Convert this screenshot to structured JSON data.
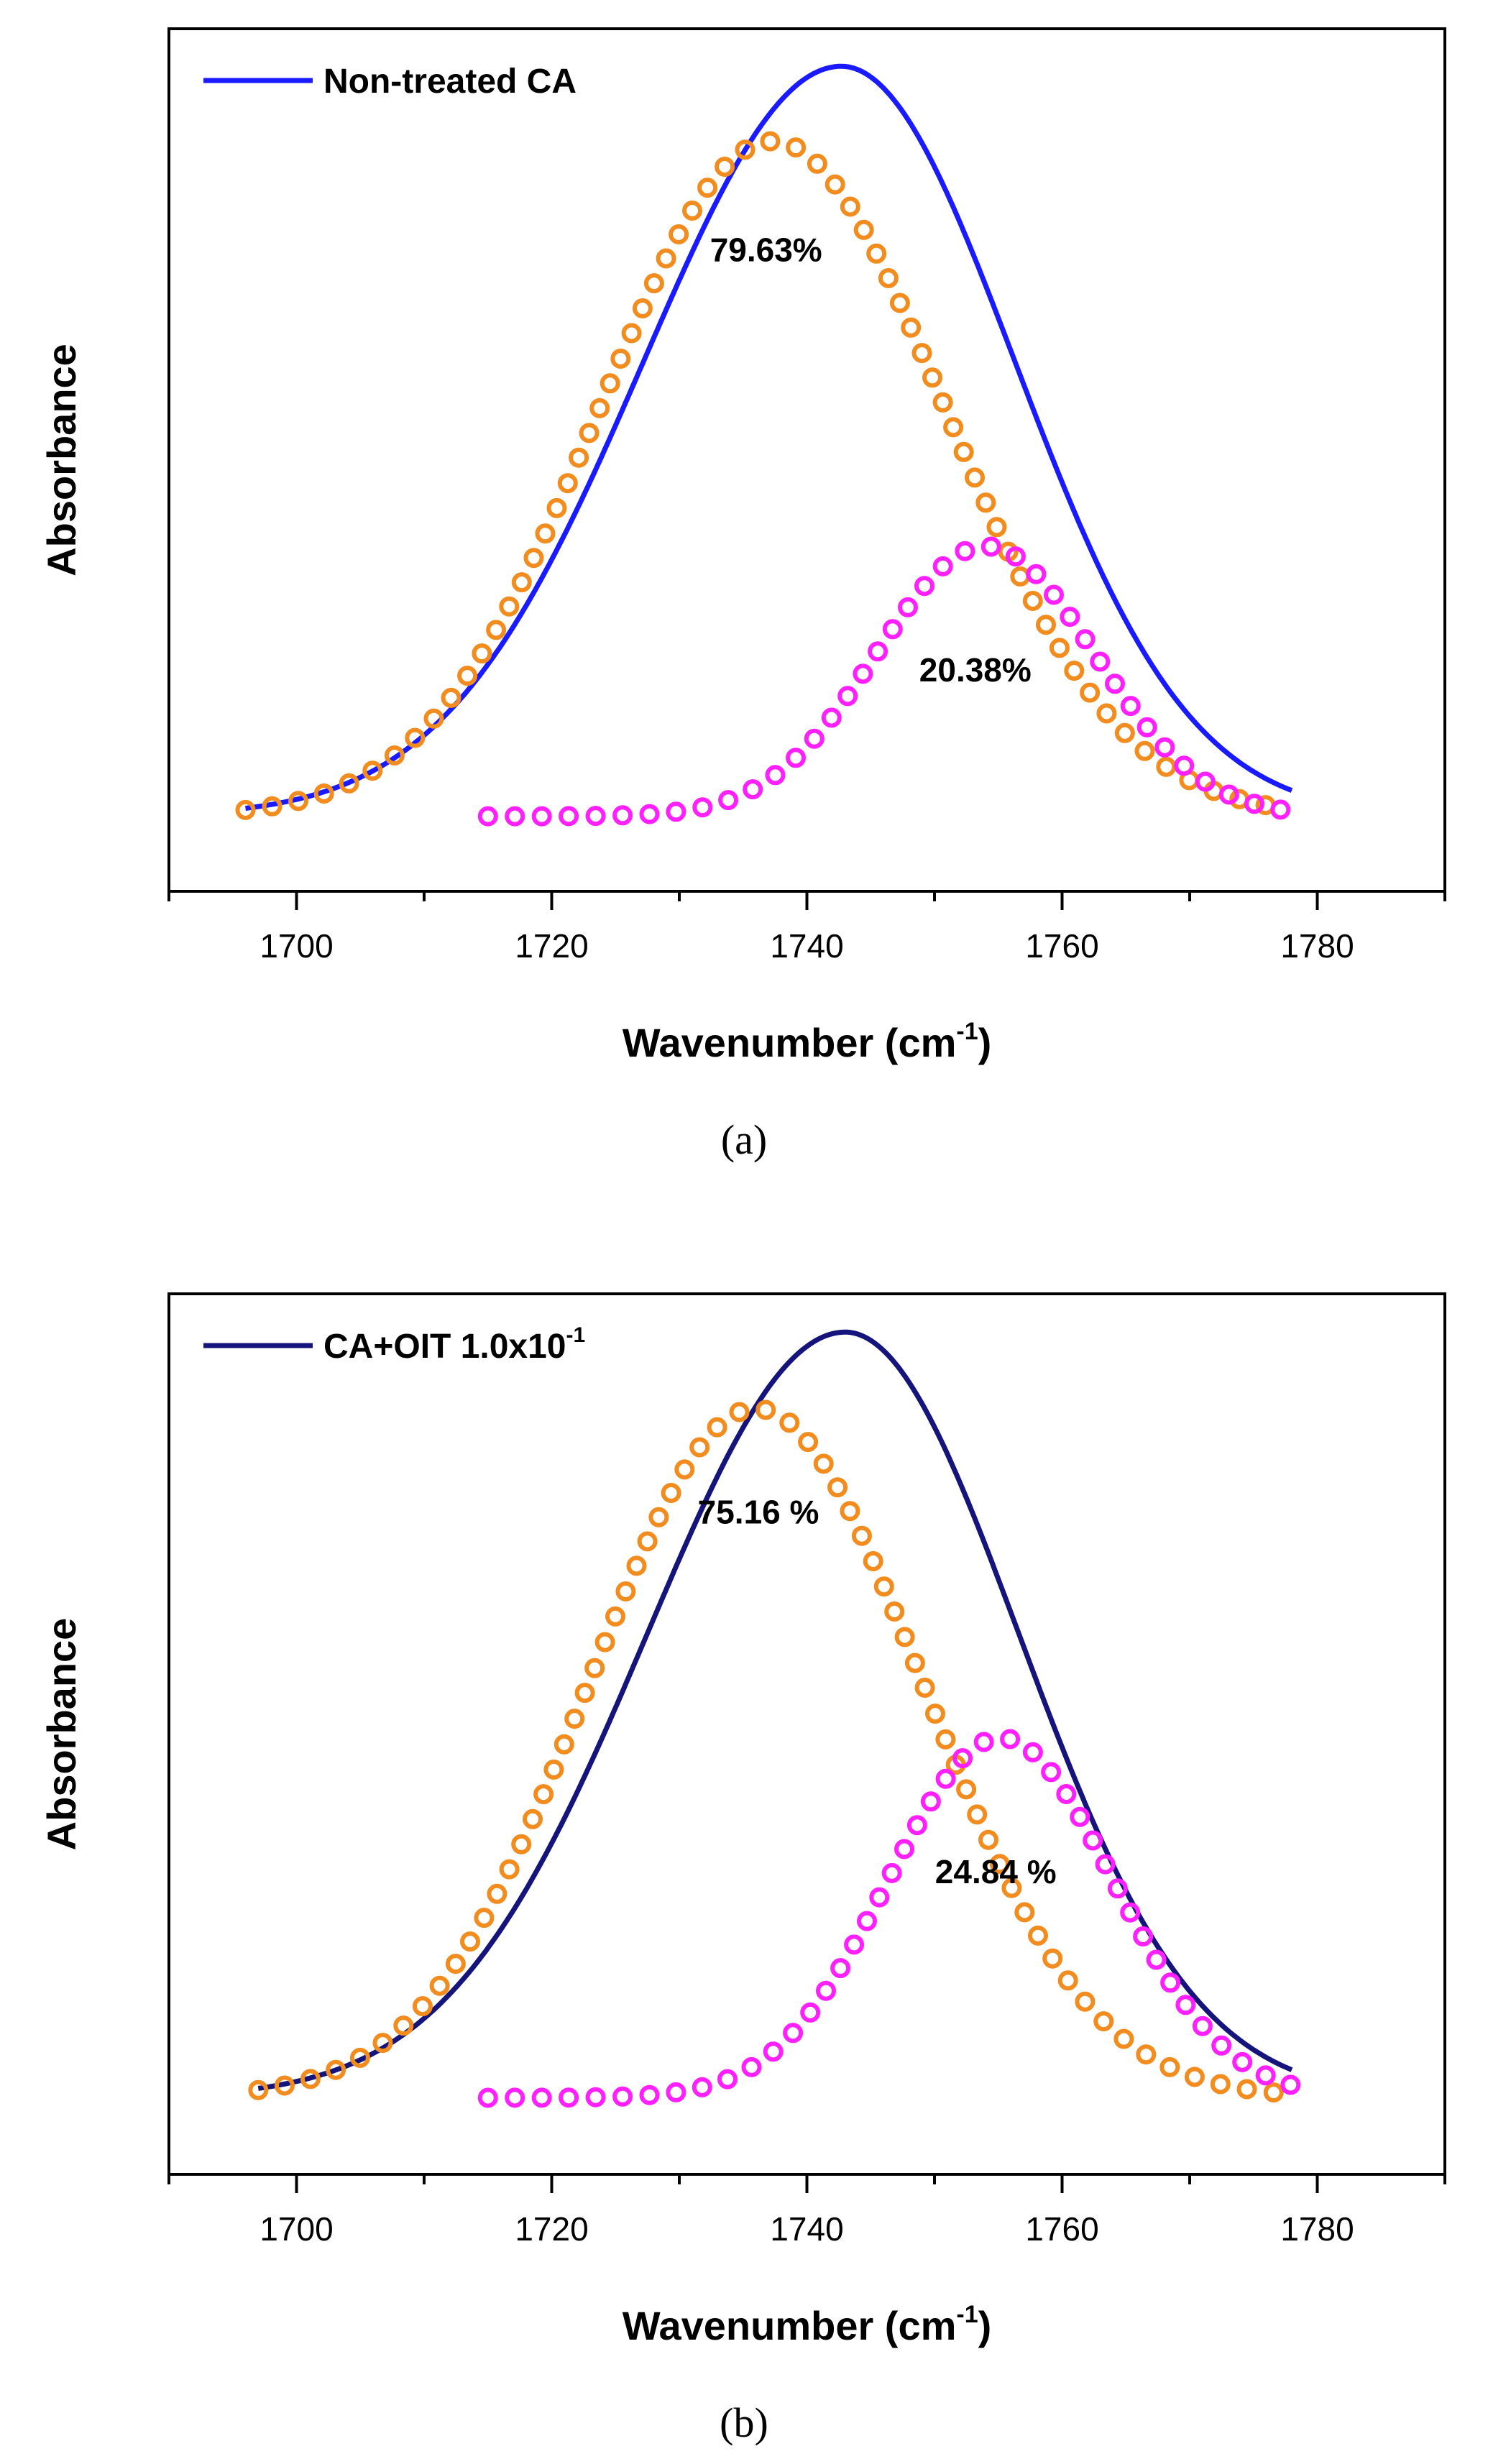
{
  "chart_data": [
    {
      "type": "line",
      "panel_label": "(a)",
      "xlabel": "Wavenumber (cm",
      "xlabel_sup": "-1",
      "xlabel_end": ")",
      "ylabel": "Absorbance",
      "xlim": [
        1690,
        1790
      ],
      "ylim": [
        -0.1,
        1.05
      ],
      "xticks": [
        1700,
        1720,
        1740,
        1760,
        1780
      ],
      "legend": {
        "label": "Non-treated CA",
        "position": "top-left"
      },
      "series": [
        {
          "name": "Non-treated CA",
          "kind": "line",
          "color": "#1a1aff",
          "peak_x": 1742.7,
          "amplitude": 1.0,
          "sigma_left": 15.5,
          "sigma_right": 13.6,
          "x_range": [
            1696,
            1778
          ]
        },
        {
          "name": "component 1",
          "kind": "markers",
          "color": "#f28c1e",
          "peak_x": 1737.3,
          "amplitude": 0.9,
          "sigma": 13.5,
          "x_range": [
            1696,
            1778
          ]
        },
        {
          "name": "component 2",
          "kind": "markers",
          "color": "#ff1fff",
          "peak_x": 1754.0,
          "amplitude": 0.36,
          "sigma": 8.5,
          "x_range": [
            1715,
            1778
          ]
        }
      ],
      "annotations": [
        {
          "text": "79.63%",
          "x": 1736.8,
          "y": 0.74
        },
        {
          "text": "20.38%",
          "x": 1753.2,
          "y": 0.18
        }
      ]
    },
    {
      "type": "line",
      "panel_label": "(b)",
      "xlabel": "Wavenumber (cm",
      "xlabel_sup": "-1",
      "xlabel_end": ")",
      "ylabel": "Absorbance",
      "xlim": [
        1690,
        1790
      ],
      "ylim": [
        -0.1,
        1.05
      ],
      "xticks": [
        1700,
        1720,
        1740,
        1760,
        1780
      ],
      "legend": {
        "label": "CA+OIT 1.0x10",
        "label_sup": "-1",
        "position": "top-left"
      },
      "series": [
        {
          "name": "CA+OIT 1.0x10-1",
          "kind": "line",
          "color": "#14147a",
          "peak_x": 1743.0,
          "amplitude": 1.0,
          "sigma_left": 15.5,
          "sigma_right": 13.6,
          "x_range": [
            1697,
            1778
          ]
        },
        {
          "name": "component 1",
          "kind": "markers",
          "color": "#f28c1e",
          "peak_x": 1736.0,
          "amplitude": 0.9,
          "sigma": 13.0,
          "x_range": [
            1697,
            1778
          ]
        },
        {
          "name": "component 2",
          "kind": "markers",
          "color": "#ff1fff",
          "peak_x": 1755.2,
          "amplitude": 0.47,
          "sigma": 8.8,
          "x_range": [
            1715,
            1778
          ]
        }
      ],
      "annotations": [
        {
          "text": "75.16 %",
          "x": 1736.2,
          "y": 0.75
        },
        {
          "text": "24.84 %",
          "x": 1754.8,
          "y": 0.28
        }
      ]
    }
  ]
}
